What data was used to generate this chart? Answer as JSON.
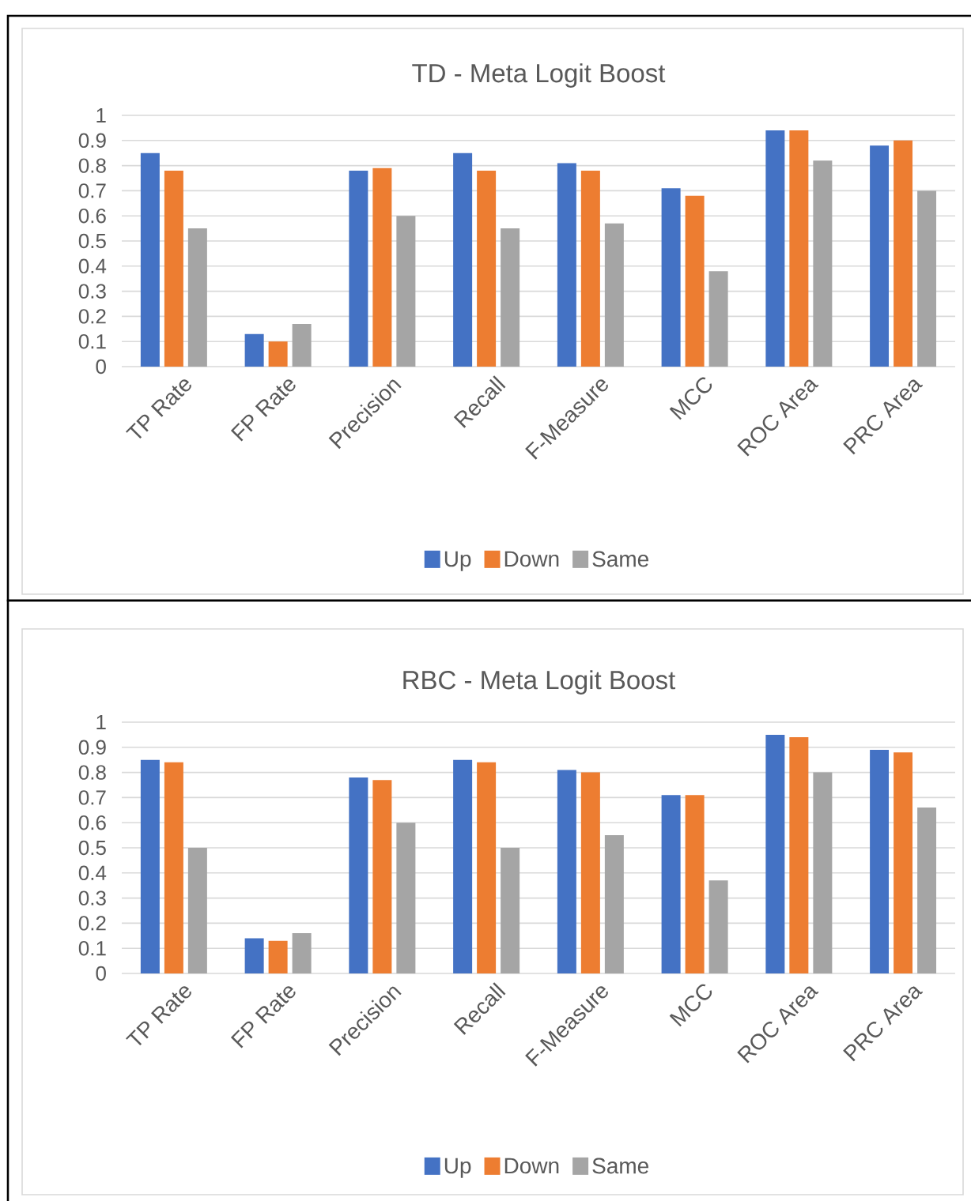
{
  "chart_data": [
    {
      "type": "bar",
      "title": "TD - Meta Logit Boost",
      "categories": [
        "TP Rate",
        "FP Rate",
        "Precision",
        "Recall",
        "F-Measure",
        "MCC",
        "ROC Area",
        "PRC Area"
      ],
      "series": [
        {
          "name": "Up",
          "color": "#4472c4",
          "values": [
            0.85,
            0.13,
            0.78,
            0.85,
            0.81,
            0.71,
            0.94,
            0.88
          ]
        },
        {
          "name": "Down",
          "color": "#ed7d31",
          "values": [
            0.78,
            0.1,
            0.79,
            0.78,
            0.78,
            0.68,
            0.94,
            0.9
          ]
        },
        {
          "name": "Same",
          "color": "#a5a5a5",
          "values": [
            0.55,
            0.17,
            0.6,
            0.55,
            0.57,
            0.38,
            0.82,
            0.7
          ]
        }
      ],
      "ylim": [
        0,
        1
      ],
      "yticks": [
        0,
        0.1,
        0.2,
        0.3,
        0.4,
        0.5,
        0.6,
        0.7,
        0.8,
        0.9,
        1
      ],
      "grid": "y",
      "legend": "bottom"
    },
    {
      "type": "bar",
      "title": "RBC - Meta Logit Boost",
      "categories": [
        "TP Rate",
        "FP Rate",
        "Precision",
        "Recall",
        "F-Measure",
        "MCC",
        "ROC Area",
        "PRC Area"
      ],
      "series": [
        {
          "name": "Up",
          "color": "#4472c4",
          "values": [
            0.85,
            0.14,
            0.78,
            0.85,
            0.81,
            0.71,
            0.95,
            0.89
          ]
        },
        {
          "name": "Down",
          "color": "#ed7d31",
          "values": [
            0.84,
            0.13,
            0.77,
            0.84,
            0.8,
            0.71,
            0.94,
            0.88
          ]
        },
        {
          "name": "Same",
          "color": "#a5a5a5",
          "values": [
            0.5,
            0.16,
            0.6,
            0.5,
            0.55,
            0.37,
            0.8,
            0.66
          ]
        }
      ],
      "ylim": [
        0,
        1
      ],
      "yticks": [
        0,
        0.1,
        0.2,
        0.3,
        0.4,
        0.5,
        0.6,
        0.7,
        0.8,
        0.9,
        1
      ],
      "grid": "y",
      "legend": "bottom"
    }
  ]
}
